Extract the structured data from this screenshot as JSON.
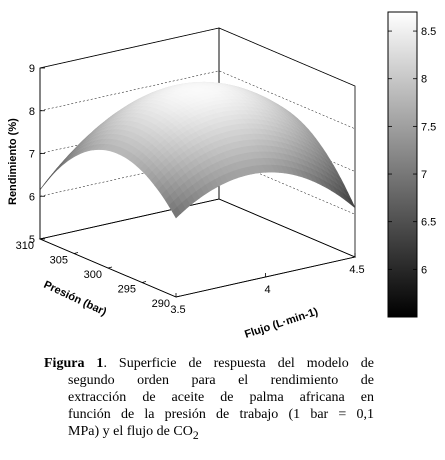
{
  "chart_data": {
    "type": "surface",
    "title": "",
    "xlabel": "Flujo (L·min-1)",
    "ylabel": "Presión (bar)",
    "zlabel": "Rendimiento (%)",
    "x_ticks": [
      "3.5",
      "4",
      "4.5"
    ],
    "y_ticks": [
      "290",
      "295",
      "300",
      "305",
      "310"
    ],
    "z_ticks": [
      "5",
      "6",
      "7",
      "8",
      "9"
    ],
    "xlim": [
      3.5,
      4.5
    ],
    "ylim": [
      290,
      310
    ],
    "zlim": [
      5,
      9
    ],
    "colorbar_ticks": [
      "6",
      "6.5",
      "7",
      "7.5",
      "8",
      "8.5"
    ],
    "colorbar_range": [
      5.5,
      8.7
    ],
    "colormap": "gray",
    "surface_max": 8.7,
    "surface_min": 5.5,
    "grid": true
  },
  "caption": {
    "label": "Figura 1",
    "lines": [
      ". Superficie de respuesta del modelo de",
      "segundo orden para el rendimiento de",
      "extracción de aceite de palma africana en",
      "función de la presión de trabajo (1 bar = 0,1",
      "MPa) y el flujo de CO"
    ],
    "subscript": "2"
  }
}
